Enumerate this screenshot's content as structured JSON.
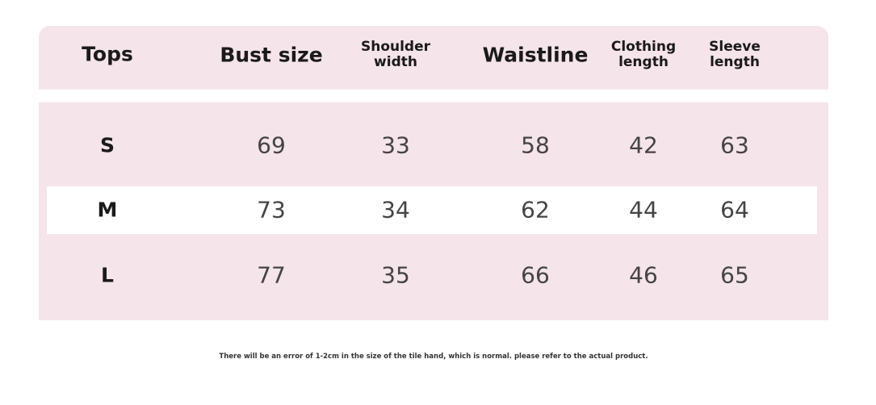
{
  "table": {
    "header": [
      "Tops",
      "Bust size",
      "Shoulder width",
      "Waistline",
      "Clothing length",
      "Sleeve length"
    ],
    "rows": [
      [
        "S",
        69,
        33,
        58,
        42,
        63
      ],
      [
        "M",
        73,
        34,
        62,
        44,
        64
      ],
      [
        "L",
        77,
        35,
        66,
        46,
        65
      ]
    ]
  },
  "footnote": "There will be an error of 1-2cm in the size of the tile hand, which is normal. please refer to the actual product."
}
